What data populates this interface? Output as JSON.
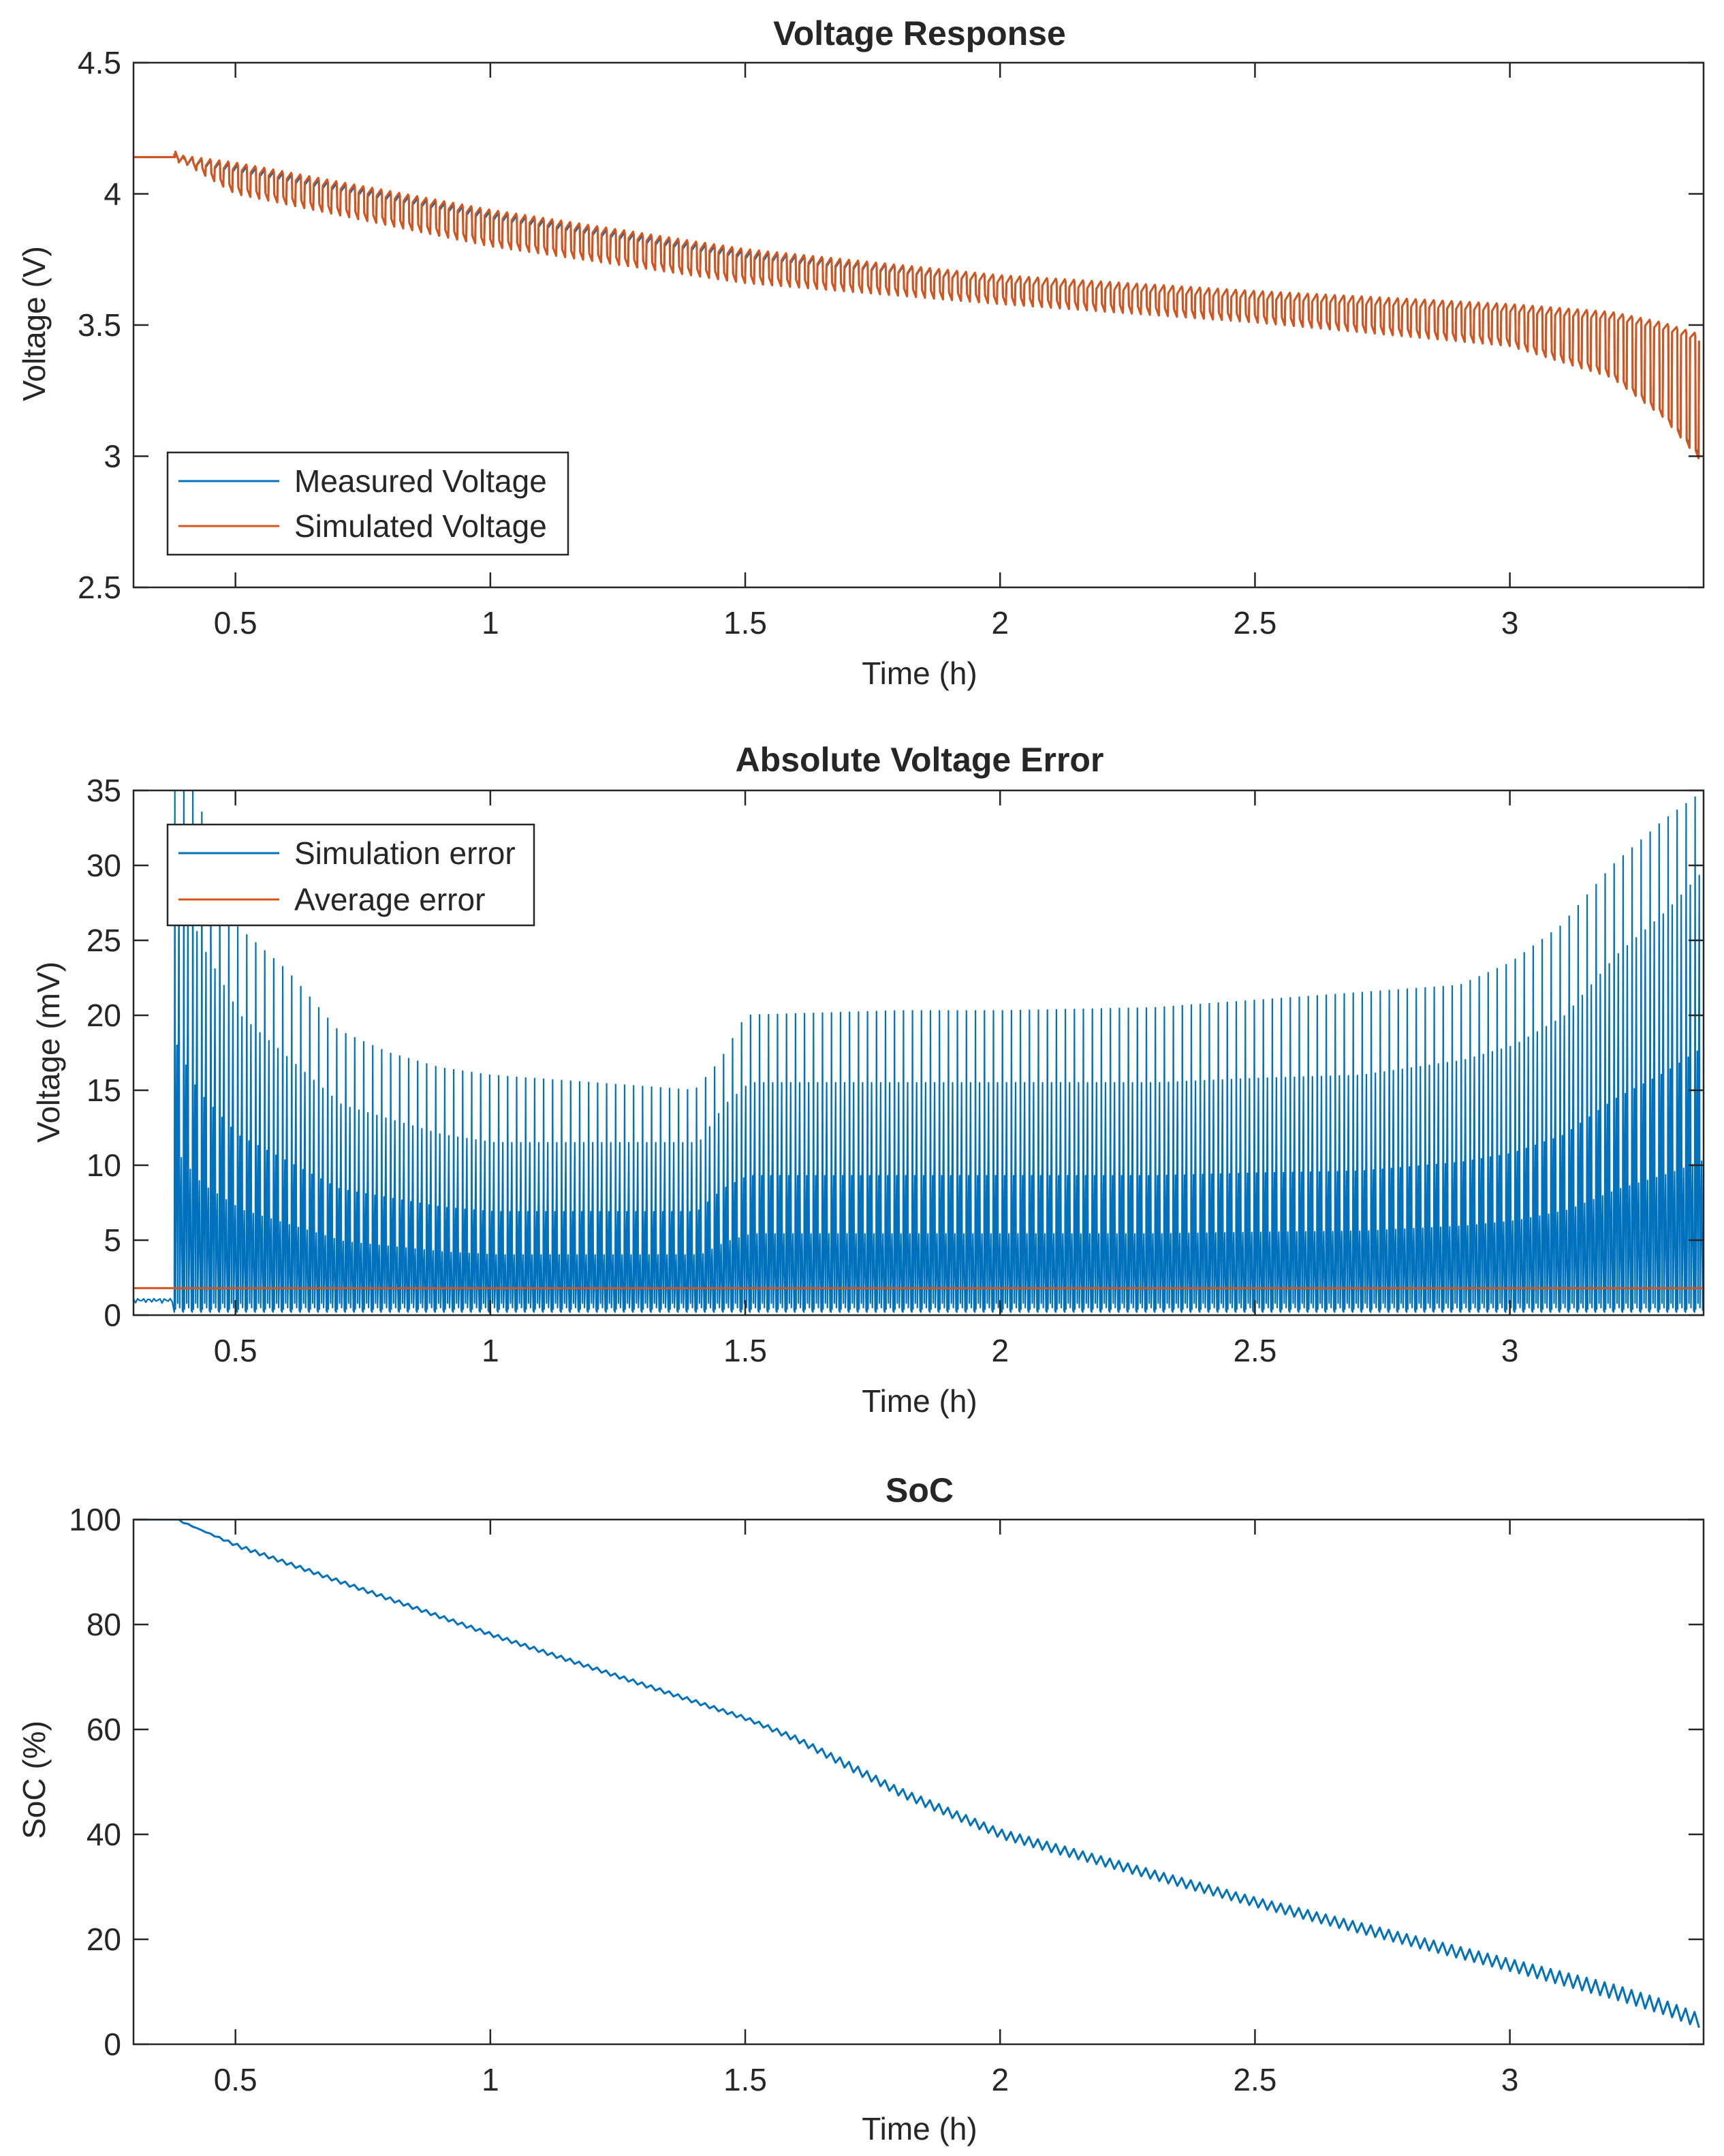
{
  "figure": {
    "layout": "3 stacked subplots"
  },
  "chart_data": [
    {
      "type": "line",
      "title": "Voltage Response",
      "xlabel": "Time (h)",
      "ylabel": "Voltage (V)",
      "xlim": [
        0.3,
        3.38
      ],
      "ylim": [
        2.5,
        4.5
      ],
      "xticks": [
        0.5,
        1,
        1.5,
        2,
        2.5,
        3
      ],
      "xtick_labels": [
        "0.5",
        "1",
        "1.5",
        "2",
        "2.5",
        "3"
      ],
      "yticks": [
        2.5,
        3,
        3.5,
        4,
        4.5
      ],
      "ytick_labels": [
        "2.5",
        "3",
        "3.5",
        "4",
        "4.5"
      ],
      "grid": false,
      "legend_position": "bottom-left",
      "legend": [
        "Measured Voltage",
        "Simulated Voltage"
      ],
      "series": [
        {
          "name": "Measured Voltage",
          "color": "#0072BD",
          "pulse_start": 0.38,
          "pulses": 170,
          "x": [
            0.3,
            0.38,
            0.5,
            1.0,
            1.5,
            2.0,
            2.5,
            3.0,
            3.2,
            3.3,
            3.38
          ],
          "upper": [
            4.14,
            4.14,
            4.1,
            3.92,
            3.77,
            3.68,
            3.62,
            3.57,
            3.54,
            3.5,
            3.45
          ],
          "lower": [
            4.14,
            4.14,
            4.0,
            3.8,
            3.66,
            3.58,
            3.51,
            3.42,
            3.3,
            3.15,
            2.98
          ]
        },
        {
          "name": "Simulated Voltage",
          "color": "#D95319",
          "pulse_start": 0.38,
          "pulses": 170,
          "x": [
            0.3,
            0.38,
            0.5,
            1.0,
            1.5,
            2.0,
            2.5,
            3.0,
            3.2,
            3.3,
            3.38
          ],
          "upper": [
            4.14,
            4.14,
            4.11,
            3.93,
            3.78,
            3.68,
            3.62,
            3.57,
            3.54,
            3.5,
            3.45
          ],
          "lower": [
            4.14,
            4.14,
            4.0,
            3.8,
            3.66,
            3.58,
            3.51,
            3.42,
            3.3,
            3.15,
            2.97
          ]
        }
      ]
    },
    {
      "type": "line",
      "title": "Absolute Voltage Error",
      "xlabel": "Time (h)",
      "ylabel": "Voltage (mV)",
      "xlim": [
        0.3,
        3.38
      ],
      "ylim": [
        0,
        35
      ],
      "xticks": [
        0.5,
        1,
        1.5,
        2,
        2.5,
        3
      ],
      "xtick_labels": [
        "0.5",
        "1",
        "1.5",
        "2",
        "2.5",
        "3"
      ],
      "yticks": [
        0,
        5,
        10,
        15,
        20,
        25,
        30,
        35
      ],
      "ytick_labels": [
        "0",
        "5",
        "10",
        "15",
        "20",
        "25",
        "30",
        "35"
      ],
      "grid": false,
      "legend_position": "top-left",
      "legend": [
        "Simulation error",
        "Average error"
      ],
      "series": [
        {
          "name": "Simulation error",
          "color": "#0072BD",
          "pulse_start": 0.38,
          "pulses": 170,
          "pre_pulse_value": 1.0,
          "x": [
            0.38,
            0.42,
            0.5,
            0.6,
            0.7,
            0.8,
            0.9,
            1.0,
            1.2,
            1.4,
            1.45,
            1.5,
            1.8,
            2.0,
            2.3,
            2.5,
            2.7,
            2.9,
            3.0,
            3.1,
            3.2,
            3.3,
            3.38
          ],
          "peaks": [
            35,
            35,
            26,
            23,
            19,
            17.5,
            16.5,
            16,
            15.5,
            15,
            17,
            20,
            20.3,
            20.3,
            20.5,
            21,
            21.5,
            22,
            23.5,
            26,
            30,
            33,
            35
          ],
          "secondary": [
            30,
            25,
            20,
            17,
            14,
            13,
            12,
            11.5,
            11.5,
            11.5,
            14,
            15.5,
            15.5,
            15.5,
            15.5,
            15.8,
            16,
            17,
            18,
            20,
            24,
            27,
            30
          ]
        },
        {
          "name": "Average error",
          "color": "#D95319",
          "x": [
            0.3,
            3.38
          ],
          "y": [
            1.8,
            1.8
          ]
        }
      ]
    },
    {
      "type": "line",
      "title": "SoC",
      "xlabel": "Time (h)",
      "ylabel": "SoC (%)",
      "xlim": [
        0.3,
        3.38
      ],
      "ylim": [
        0,
        100
      ],
      "xticks": [
        0.5,
        1,
        1.5,
        2,
        2.5,
        3
      ],
      "xtick_labels": [
        "0.5",
        "1",
        "1.5",
        "2",
        "2.5",
        "3"
      ],
      "yticks": [
        0,
        20,
        40,
        60,
        80,
        100
      ],
      "ytick_labels": [
        "0",
        "20",
        "40",
        "60",
        "80",
        "100"
      ],
      "grid": false,
      "legend": [],
      "series": [
        {
          "name": "SoC",
          "color": "#0072BD",
          "pulse_start": 0.38,
          "pulses": 170,
          "x": [
            0.3,
            0.38,
            0.5,
            1.0,
            1.5,
            1.6,
            1.7,
            1.8,
            1.9,
            2.0,
            2.5,
            3.0,
            3.2,
            3.3,
            3.38
          ],
          "y": [
            100,
            100,
            95,
            78,
            62,
            58,
            53,
            48,
            44,
            40,
            27,
            15,
            10,
            7,
            4
          ],
          "ripple": [
            0,
            0,
            1,
            1,
            1,
            1.5,
            2,
            2,
            2,
            2,
            2,
            2.5,
            3,
            3,
            3
          ]
        }
      ]
    }
  ]
}
